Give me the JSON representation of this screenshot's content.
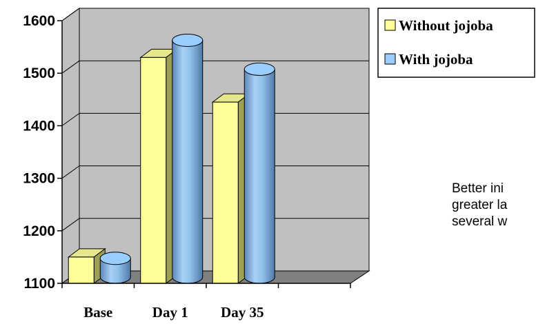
{
  "chart_data": {
    "type": "bar",
    "categories": [
      "Base",
      "Day 1",
      "Day 35"
    ],
    "series": [
      {
        "name": "Without jojoba",
        "values": [
          1150,
          1530,
          1445
        ]
      },
      {
        "name": "With jojoba",
        "values": [
          1145,
          1560,
          1505
        ]
      }
    ],
    "ylim": [
      1100,
      1600
    ],
    "yticks": [
      "1100",
      "1200",
      "1300",
      "1400",
      "1500",
      "1600"
    ],
    "grid": true,
    "legend": "top-right",
    "colors": {
      "without": "#ffff99",
      "with": "#99ccff",
      "wall": "#c0c0c0",
      "floor": "#808080"
    }
  },
  "annotation": {
    "lines": [
      "Better ini",
      "greater la",
      "several w"
    ]
  }
}
